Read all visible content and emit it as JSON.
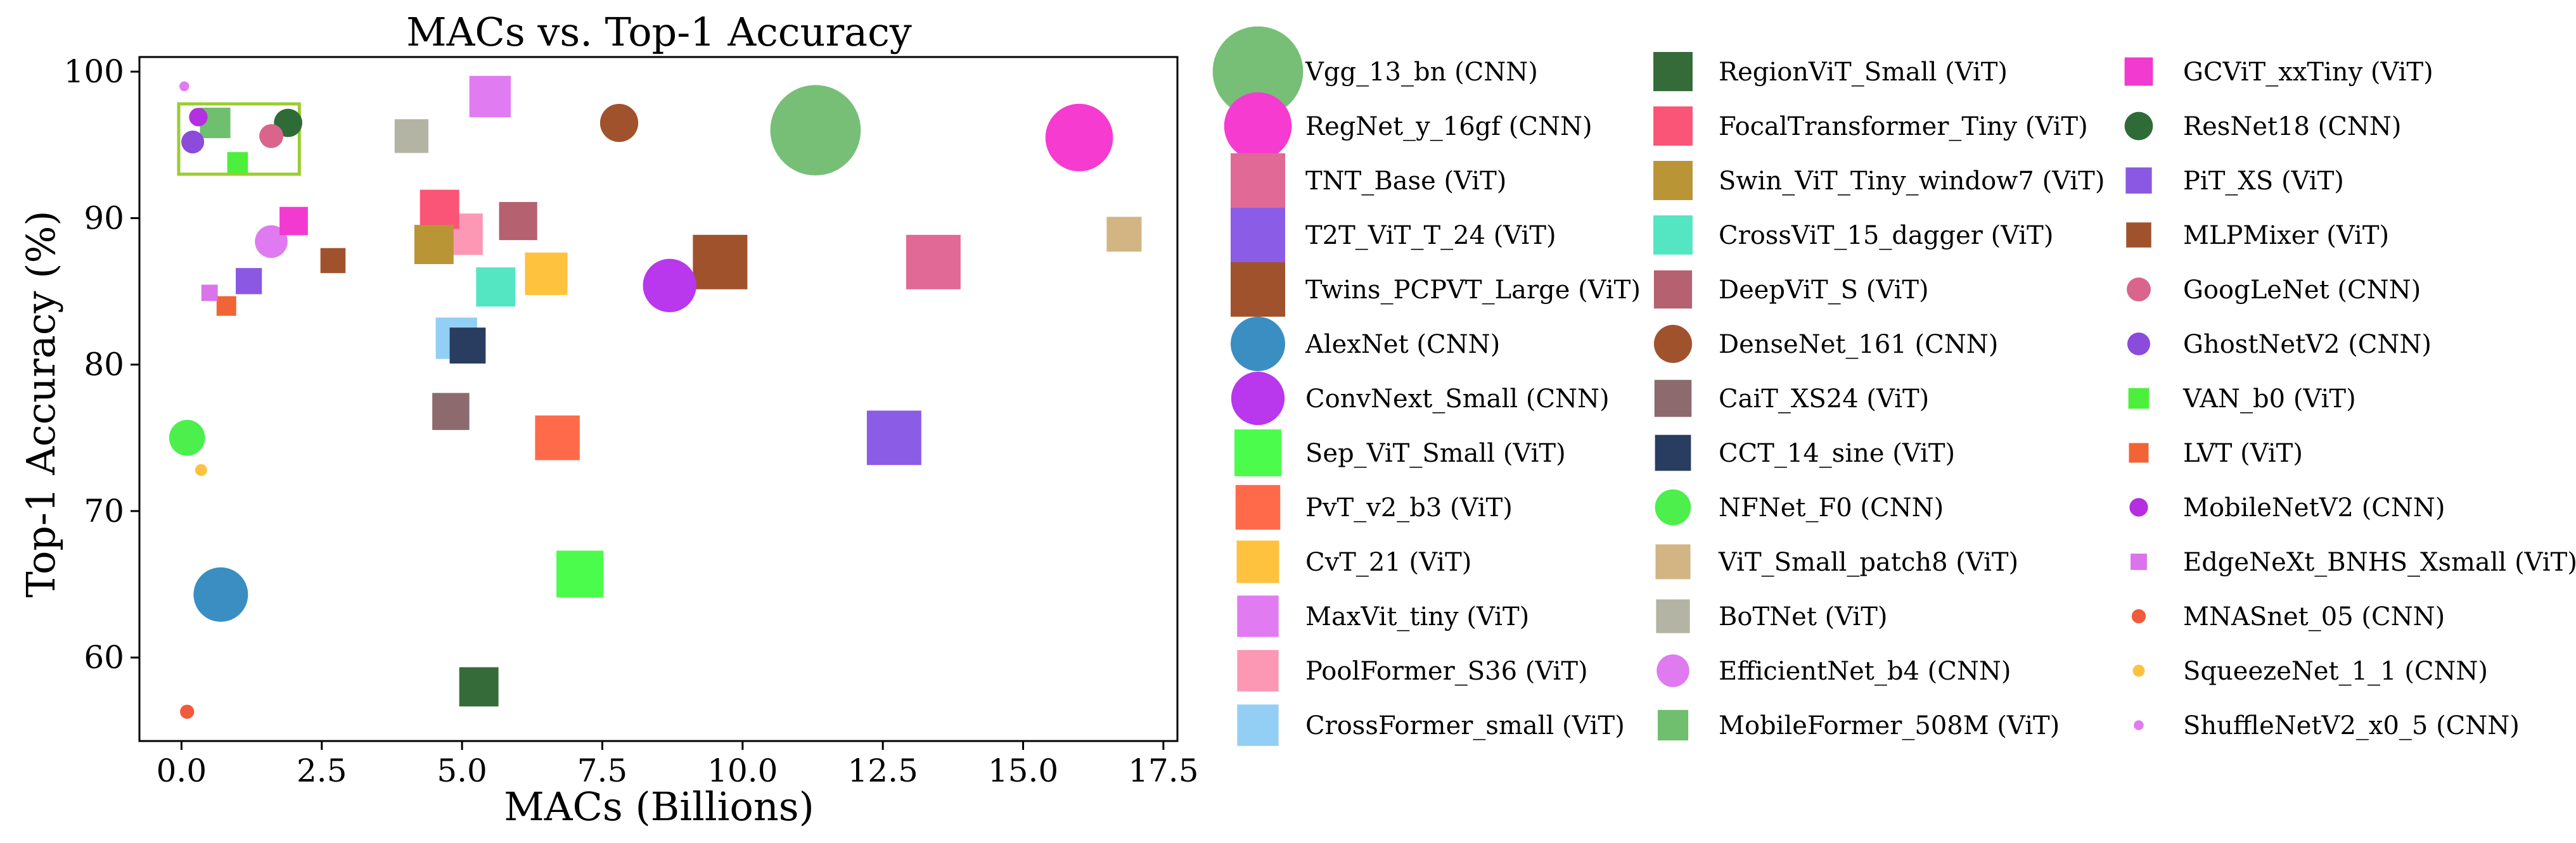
{
  "chart_data": {
    "type": "scatter",
    "title": "MACs vs. Top-1 Accuracy",
    "xlabel": "MACs (Billions)",
    "ylabel": "Top-1 Accuracy (%)",
    "xlim": [
      -0.75,
      17.75
    ],
    "ylim": [
      54.3,
      101.0
    ],
    "xticks": [
      0.0,
      2.5,
      5.0,
      7.5,
      10.0,
      12.5,
      15.0,
      17.5
    ],
    "xtick_labels": [
      "0.0",
      "2.5",
      "5.0",
      "7.5",
      "10.0",
      "12.5",
      "15.0",
      "17.5"
    ],
    "yticks": [
      60,
      70,
      80,
      90,
      100
    ],
    "ytick_labels": [
      "60",
      "70",
      "80",
      "90",
      "100"
    ],
    "grid": false,
    "legend_position": "right",
    "highlight_box": {
      "x_range": [
        -0.05,
        2.1
      ],
      "y_range": [
        93.0,
        97.8
      ],
      "color": "#9ACD32"
    },
    "series": [
      {
        "name": "Vgg_13_bn (CNN)",
        "x": 11.3,
        "y": 96.0,
        "marker": "circle",
        "color": "#77BF77",
        "size": 8.3
      },
      {
        "name": "RegNet_y_16gf (CNN)",
        "x": 16.0,
        "y": 95.5,
        "marker": "circle",
        "color": "#F53BD0",
        "size": 6.2
      },
      {
        "name": "TNT_Base (ViT)",
        "x": 13.4,
        "y": 87.0,
        "marker": "square",
        "color": "#E06996",
        "size": 5.0
      },
      {
        "name": "T2T_ViT_T_24 (ViT)",
        "x": 12.7,
        "y": 75.0,
        "marker": "square",
        "color": "#8B5CE6",
        "size": 5.0
      },
      {
        "name": "Twins_PCPVT_Large (ViT)",
        "x": 9.6,
        "y": 87.0,
        "marker": "square",
        "color": "#A0522D",
        "size": 5.0
      },
      {
        "name": "AlexNet (CNN)",
        "x": 0.7,
        "y": 64.3,
        "marker": "circle",
        "color": "#3B8EC2",
        "size": 5.0
      },
      {
        "name": "ConvNext_Small (CNN)",
        "x": 8.7,
        "y": 85.4,
        "marker": "circle",
        "color": "#B937ED",
        "size": 4.9
      },
      {
        "name": "Sep_ViT_Small (ViT)",
        "x": 7.1,
        "y": 65.7,
        "marker": "square",
        "color": "#4CFC4C",
        "size": 4.3
      },
      {
        "name": "PvT_v2_b3 (ViT)",
        "x": 6.7,
        "y": 75.0,
        "marker": "square",
        "color": "#FF6B4A",
        "size": 4.1
      },
      {
        "name": "CvT_21 (ViT)",
        "x": 6.5,
        "y": 86.2,
        "marker": "square",
        "color": "#FFC23E",
        "size": 3.9
      },
      {
        "name": "MaxVit_tiny (ViT)",
        "x": 5.5,
        "y": 98.3,
        "marker": "square",
        "color": "#E17BF2",
        "size": 3.8
      },
      {
        "name": "PoolFormer_S36 (ViT)",
        "x": 5.0,
        "y": 88.9,
        "marker": "square",
        "color": "#FC97B4",
        "size": 3.8
      },
      {
        "name": "CrossFormer_small (ViT)",
        "x": 4.9,
        "y": 81.8,
        "marker": "square",
        "color": "#93CFF4",
        "size": 3.8
      },
      {
        "name": "RegionViT_Small (ViT)",
        "x": 5.3,
        "y": 58.0,
        "marker": "square",
        "color": "#356B39",
        "size": 3.6
      },
      {
        "name": "FocalTransformer_Tiny (ViT)",
        "x": 4.6,
        "y": 90.6,
        "marker": "square",
        "color": "#FA5476",
        "size": 3.6
      },
      {
        "name": "Swin_ViT_Tiny_window7 (ViT)",
        "x": 4.5,
        "y": 88.2,
        "marker": "square",
        "color": "#BA9535",
        "size": 3.6
      },
      {
        "name": "CrossViT_15_dagger (ViT)",
        "x": 5.6,
        "y": 85.3,
        "marker": "square",
        "color": "#54E6C2",
        "size": 3.6
      },
      {
        "name": "DeepViT_S (ViT)",
        "x": 6.0,
        "y": 89.8,
        "marker": "square",
        "color": "#B5616F",
        "size": 3.5
      },
      {
        "name": "DenseNet_161 (CNN)",
        "x": 7.8,
        "y": 96.5,
        "marker": "circle",
        "color": "#A0522D",
        "size": 3.5
      },
      {
        "name": "CaiT_XS24 (ViT)",
        "x": 4.8,
        "y": 76.8,
        "marker": "square",
        "color": "#8C6A6E",
        "size": 3.4
      },
      {
        "name": "CCT_14_sine (ViT)",
        "x": 5.1,
        "y": 81.3,
        "marker": "square",
        "color": "#283D5F",
        "size": 3.3
      },
      {
        "name": "NFNet_F0 (CNN)",
        "x": 0.1,
        "y": 75.0,
        "marker": "circle",
        "color": "#4CEF4C",
        "size": 3.3
      },
      {
        "name": "ViT_Small_patch8 (ViT)",
        "x": 16.8,
        "y": 88.9,
        "marker": "square",
        "color": "#D2B583",
        "size": 3.2
      },
      {
        "name": "BoTNet (ViT)",
        "x": 4.1,
        "y": 95.6,
        "marker": "square",
        "color": "#B4B4A4",
        "size": 3.1
      },
      {
        "name": "EfficientNet_b4 (CNN)",
        "x": 1.6,
        "y": 88.4,
        "marker": "circle",
        "color": "#DF7AF0",
        "size": 3.0
      },
      {
        "name": "MobileFormer_508M (ViT)",
        "x": 0.6,
        "y": 96.5,
        "marker": "square",
        "color": "#6FBF6F",
        "size": 2.8
      },
      {
        "name": "GCViT_xxTiny (ViT)",
        "x": 2.0,
        "y": 89.8,
        "marker": "square",
        "color": "#F23AD0",
        "size": 2.6
      },
      {
        "name": "ResNet18 (CNN)",
        "x": 1.9,
        "y": 96.5,
        "marker": "circle",
        "color": "#2F6B36",
        "size": 2.6
      },
      {
        "name": "PiT_XS (ViT)",
        "x": 1.2,
        "y": 85.7,
        "marker": "square",
        "color": "#8A58E2",
        "size": 2.4
      },
      {
        "name": "MLPMixer (ViT)",
        "x": 2.7,
        "y": 87.1,
        "marker": "square",
        "color": "#A0522D",
        "size": 2.3
      },
      {
        "name": "GoogLeNet (CNN)",
        "x": 1.6,
        "y": 95.6,
        "marker": "circle",
        "color": "#D9648C",
        "size": 2.2
      },
      {
        "name": "GhostNetV2 (CNN)",
        "x": 0.2,
        "y": 95.2,
        "marker": "circle",
        "color": "#8B4BDB",
        "size": 2.1
      },
      {
        "name": "VAN_b0 (ViT)",
        "x": 1.0,
        "y": 93.8,
        "marker": "square",
        "color": "#4CF03C",
        "size": 1.9
      },
      {
        "name": "LVT (ViT)",
        "x": 0.8,
        "y": 84.0,
        "marker": "square",
        "color": "#F06436",
        "size": 1.8
      },
      {
        "name": "MobileNetV2 (CNN)",
        "x": 0.3,
        "y": 96.9,
        "marker": "circle",
        "color": "#B42FE0",
        "size": 1.7
      },
      {
        "name": "EdgeNeXt_BNHS_Xsmall (ViT)",
        "x": 0.5,
        "y": 84.9,
        "marker": "square",
        "color": "#DB73EA",
        "size": 1.5
      },
      {
        "name": "MNASnet_05 (CNN)",
        "x": 0.1,
        "y": 56.3,
        "marker": "circle",
        "color": "#F25A3C",
        "size": 1.3
      },
      {
        "name": "SqueezeNet_1_1 (CNN)",
        "x": 0.35,
        "y": 72.8,
        "marker": "circle",
        "color": "#FFC23E",
        "size": 1.1
      },
      {
        "name": "ShuffleNetV2_x0_5 (CNN)",
        "x": 0.05,
        "y": 99.0,
        "marker": "circle",
        "color": "#E27BEF",
        "size": 0.9
      }
    ]
  }
}
